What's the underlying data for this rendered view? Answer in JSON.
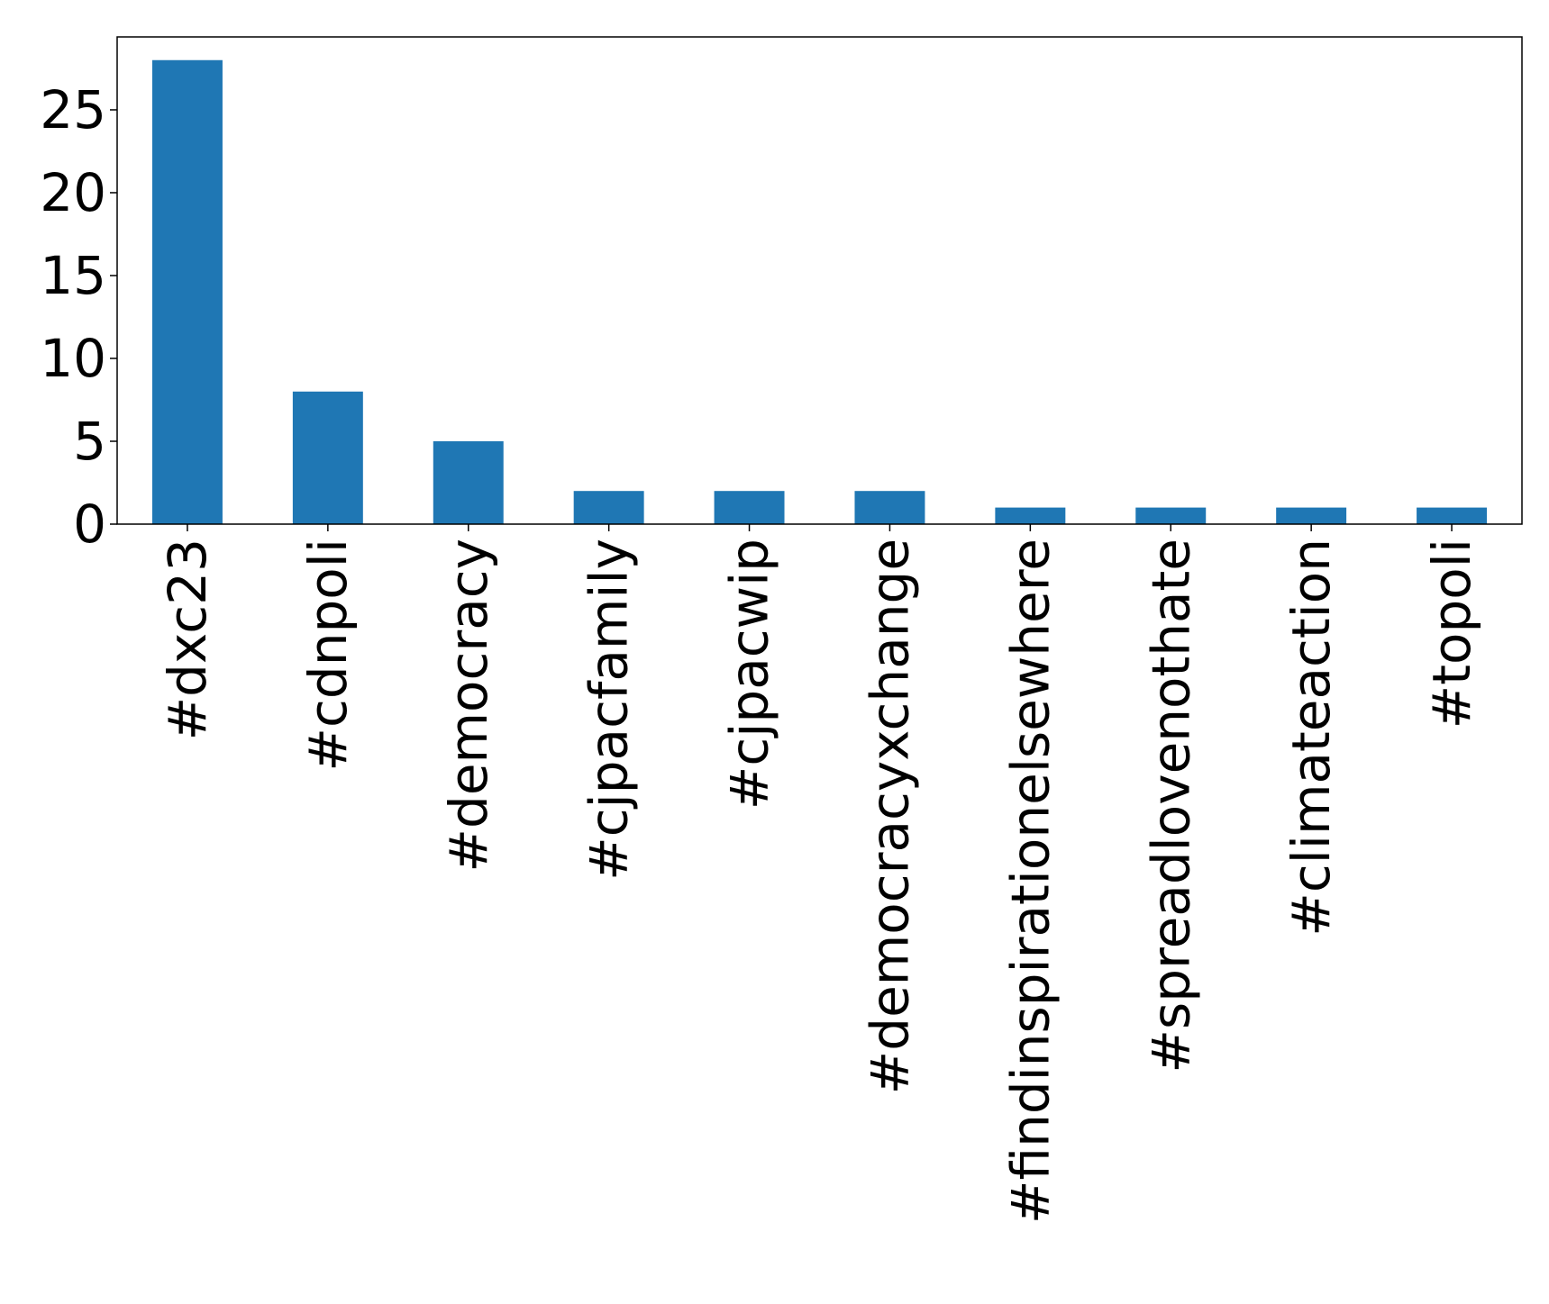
{
  "chart_data": {
    "type": "bar",
    "categories": [
      "#dxc23",
      "#cdnpoli",
      "#democracy",
      "#cjpacfamily",
      "#cjpacwip",
      "#democracyxchange",
      "#findinspirationelsewhere",
      "#spreadlovenothate",
      "#climateaction",
      "#topoli"
    ],
    "values": [
      28,
      8,
      5,
      2,
      2,
      2,
      1,
      1,
      1,
      1
    ],
    "title": "",
    "xlabel": "",
    "ylabel": "",
    "ylim": [
      0,
      29.4
    ],
    "yticks": [
      0,
      5,
      10,
      15,
      20,
      25
    ],
    "bar_color": "#1f77b4",
    "grid": false,
    "legend": "none"
  }
}
